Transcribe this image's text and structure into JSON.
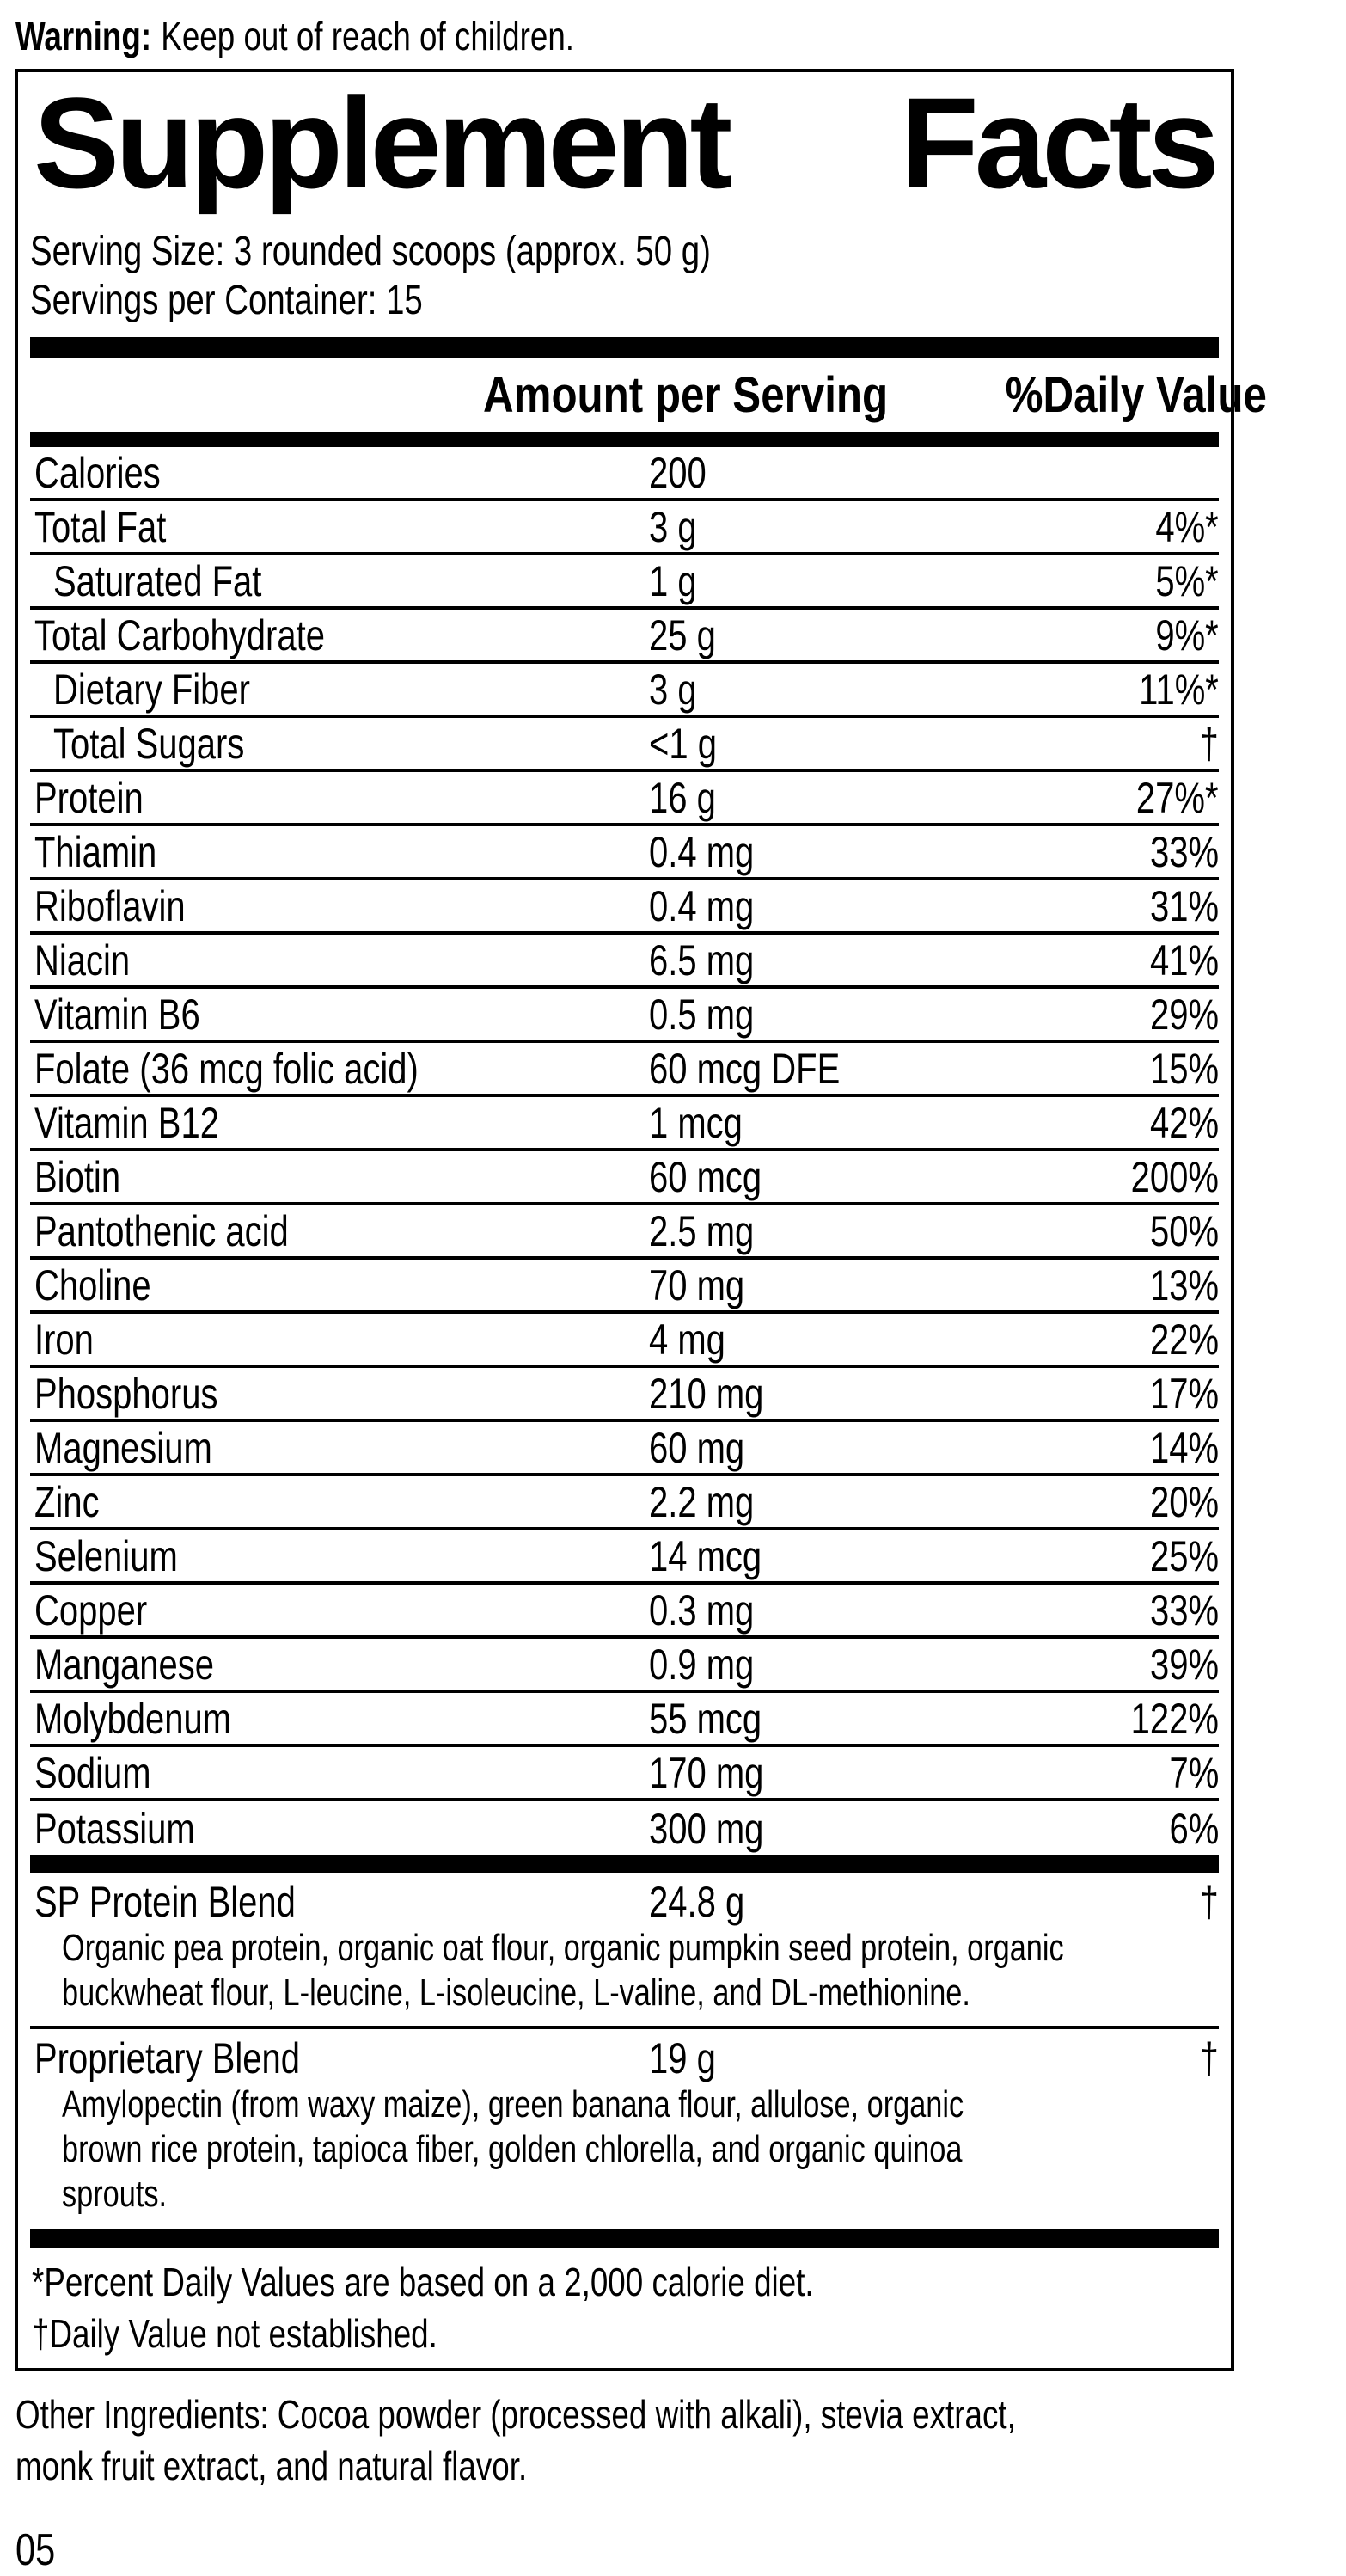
{
  "colors": {
    "text": "#000000",
    "background": "#ffffff"
  },
  "warning": {
    "label": "Warning:",
    "text": "Keep out of reach of children."
  },
  "panel": {
    "title_word1": "Supplement",
    "title_word2": "Facts",
    "serving_size": "Serving Size: 3 rounded scoops (approx. 50 g)",
    "servings_per_container": "Servings per Container: 15",
    "col_amount": "Amount per Serving",
    "col_dv": "%Daily Value",
    "rows": [
      {
        "name": "Calories",
        "amount": "200",
        "dv": "",
        "indent": false
      },
      {
        "name": "Total Fat",
        "amount": "3 g",
        "dv": "4%*",
        "indent": false
      },
      {
        "name": "Saturated Fat",
        "amount": "1 g",
        "dv": "5%*",
        "indent": true
      },
      {
        "name": "Total Carbohydrate",
        "amount": "25 g",
        "dv": "9%*",
        "indent": false
      },
      {
        "name": "Dietary Fiber",
        "amount": "3 g",
        "dv": "11%*",
        "indent": true
      },
      {
        "name": "Total Sugars",
        "amount": "<1 g",
        "dv": "†",
        "indent": true
      },
      {
        "name": "Protein",
        "amount": "16 g",
        "dv": "27%*",
        "indent": false
      },
      {
        "name": "Thiamin",
        "amount": "0.4 mg",
        "dv": "33%",
        "indent": false
      },
      {
        "name": "Riboflavin",
        "amount": "0.4 mg",
        "dv": "31%",
        "indent": false
      },
      {
        "name": "Niacin",
        "amount": "6.5 mg",
        "dv": "41%",
        "indent": false
      },
      {
        "name": "Vitamin B6",
        "amount": "0.5 mg",
        "dv": "29%",
        "indent": false
      },
      {
        "name": "Folate (36 mcg folic acid)",
        "amount": "60 mcg DFE",
        "dv": "15%",
        "indent": false
      },
      {
        "name": "Vitamin B12",
        "amount": "1 mcg",
        "dv": "42%",
        "indent": false
      },
      {
        "name": "Biotin",
        "amount": "60 mcg",
        "dv": "200%",
        "indent": false
      },
      {
        "name": "Pantothenic acid",
        "amount": "2.5 mg",
        "dv": "50%",
        "indent": false
      },
      {
        "name": "Choline",
        "amount": "70 mg",
        "dv": "13%",
        "indent": false
      },
      {
        "name": "Iron",
        "amount": "4 mg",
        "dv": "22%",
        "indent": false
      },
      {
        "name": "Phosphorus",
        "amount": "210 mg",
        "dv": "17%",
        "indent": false
      },
      {
        "name": "Magnesium",
        "amount": "60 mg",
        "dv": "14%",
        "indent": false
      },
      {
        "name": "Zinc",
        "amount": "2.2 mg",
        "dv": "20%",
        "indent": false
      },
      {
        "name": "Selenium",
        "amount": "14 mcg",
        "dv": "25%",
        "indent": false
      },
      {
        "name": "Copper",
        "amount": "0.3 mg",
        "dv": "33%",
        "indent": false
      },
      {
        "name": "Manganese",
        "amount": "0.9 mg",
        "dv": "39%",
        "indent": false
      },
      {
        "name": "Molybdenum",
        "amount": "55 mcg",
        "dv": "122%",
        "indent": false
      },
      {
        "name": "Sodium",
        "amount": "170 mg",
        "dv": "7%",
        "indent": false
      },
      {
        "name": "Potassium",
        "amount": "300 mg",
        "dv": "6%",
        "indent": false
      }
    ],
    "blends": [
      {
        "name": "SP Protein Blend",
        "amount": "24.8 g",
        "dv": "†",
        "desc": [
          "Organic pea protein, organic oat flour, organic pumpkin seed protein, organic",
          "buckwheat flour, L-leucine, L-isoleucine, L-valine, and DL-methionine."
        ]
      },
      {
        "name": "Proprietary Blend",
        "amount": "19 g",
        "dv": "†",
        "desc": [
          "Amylopectin (from waxy maize), green banana flour, allulose, organic",
          "brown rice protein, tapioca fiber, golden chlorella, and organic quinoa",
          "sprouts."
        ]
      }
    ],
    "footnotes": [
      "*Percent Daily Values are based on a 2,000 calorie diet.",
      "†Daily Value not established."
    ]
  },
  "other_ingredients": [
    "Other Ingredients: Cocoa powder (processed with alkali), stevia extract,",
    "monk fruit extract, and natural flavor."
  ],
  "page_number": "05"
}
